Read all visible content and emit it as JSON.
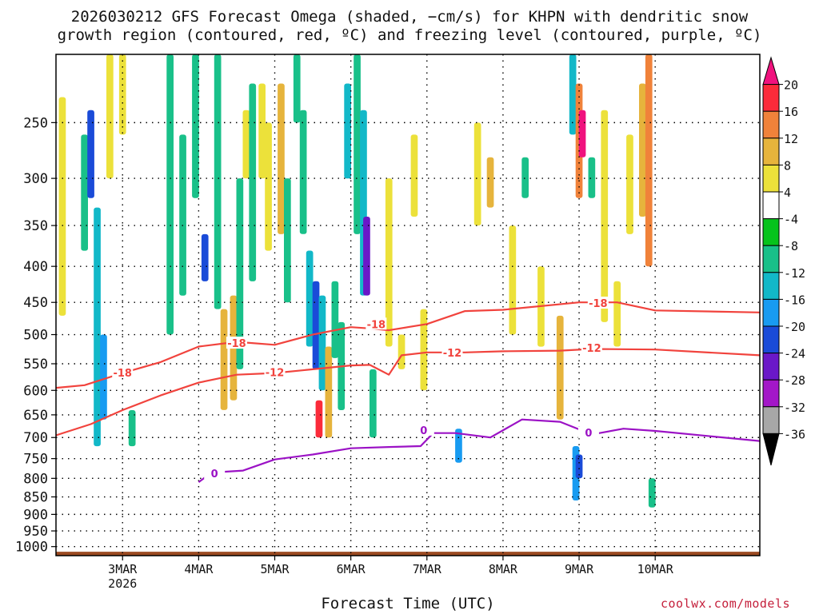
{
  "title": {
    "line1": "2026030212 GFS Forecast Omega (shaded, −cm/s) for KHPN with dendritic snow",
    "line2": "growth region (contoured, red, ºC) and freezing level (contoured, purple, ºC)"
  },
  "x_axis_title": "Forecast Time (UTC)",
  "credit": "coolwx.com/models",
  "chart_data": {
    "type": "heatmap",
    "x_label": "Forecast Time (UTC)",
    "x_range_hours": [
      -9,
      213
    ],
    "x_ticks": [
      {
        "hour": 12,
        "label": "3MAR",
        "sublabel": "2026"
      },
      {
        "hour": 36,
        "label": "4MAR",
        "sublabel": ""
      },
      {
        "hour": 60,
        "label": "5MAR",
        "sublabel": ""
      },
      {
        "hour": 84,
        "label": "6MAR",
        "sublabel": ""
      },
      {
        "hour": 108,
        "label": "7MAR",
        "sublabel": ""
      },
      {
        "hour": 132,
        "label": "8MAR",
        "sublabel": ""
      },
      {
        "hour": 156,
        "label": "9MAR",
        "sublabel": ""
      },
      {
        "hour": 180,
        "label": "10MAR",
        "sublabel": ""
      }
    ],
    "y_label": "Pressure (hPa)",
    "y_range_hpa": [
      1030,
      200
    ],
    "y_ticks": [
      250,
      300,
      350,
      400,
      450,
      500,
      550,
      600,
      650,
      700,
      750,
      800,
      850,
      900,
      950,
      1000
    ],
    "colorbar": {
      "labels": [
        "20",
        "16",
        "12",
        "8",
        "4",
        "-4",
        "-8",
        "-12",
        "-16",
        "-20",
        "-24",
        "-28",
        "-32",
        "-36"
      ],
      "colors": [
        "#f0127e",
        "#fb2b3a",
        "#f0823a",
        "#e6b43c",
        "#ece13a",
        "#ffffff",
        "#06c31c",
        "#19c089",
        "#12b8c8",
        "#189bf1",
        "#1a4bd8",
        "#6a18c8",
        "#a317c8",
        "#a7a7a7",
        "#000000"
      ]
    },
    "omega_cells": [
      {
        "t": -7,
        "p1": 230,
        "p2": 470,
        "v": 6
      },
      {
        "t": 0,
        "p1": 260,
        "p2": 380,
        "v": -10
      },
      {
        "t": 2,
        "p1": 240,
        "p2": 320,
        "v": -22
      },
      {
        "t": 4,
        "p1": 330,
        "p2": 720,
        "v": -14
      },
      {
        "t": 6,
        "p1": 500,
        "p2": 660,
        "v": -16
      },
      {
        "t": 8,
        "p1": 200,
        "p2": 300,
        "v": 6
      },
      {
        "t": 12,
        "p1": 200,
        "p2": 260,
        "v": 6
      },
      {
        "t": 15,
        "p1": 640,
        "p2": 720,
        "v": -8
      },
      {
        "t": 27,
        "p1": 200,
        "p2": 500,
        "v": -8
      },
      {
        "t": 31,
        "p1": 260,
        "p2": 440,
        "v": -10
      },
      {
        "t": 35,
        "p1": 200,
        "p2": 320,
        "v": -9
      },
      {
        "t": 38,
        "p1": 360,
        "p2": 420,
        "v": -20
      },
      {
        "t": 42,
        "p1": 200,
        "p2": 460,
        "v": -9
      },
      {
        "t": 44,
        "p1": 460,
        "p2": 640,
        "v": 8
      },
      {
        "t": 47,
        "p1": 440,
        "p2": 620,
        "v": 10
      },
      {
        "t": 49,
        "p1": 300,
        "p2": 560,
        "v": -10
      },
      {
        "t": 51,
        "p1": 240,
        "p2": 300,
        "v": 6
      },
      {
        "t": 53,
        "p1": 220,
        "p2": 420,
        "v": -9
      },
      {
        "t": 56,
        "p1": 220,
        "p2": 300,
        "v": 6
      },
      {
        "t": 58,
        "p1": 250,
        "p2": 380,
        "v": 6
      },
      {
        "t": 62,
        "p1": 220,
        "p2": 360,
        "v": 8
      },
      {
        "t": 64,
        "p1": 300,
        "p2": 450,
        "v": -8
      },
      {
        "t": 67,
        "p1": 200,
        "p2": 250,
        "v": -10
      },
      {
        "t": 69,
        "p1": 240,
        "p2": 360,
        "v": -9
      },
      {
        "t": 71,
        "p1": 380,
        "p2": 520,
        "v": -14
      },
      {
        "t": 73,
        "p1": 420,
        "p2": 560,
        "v": -22
      },
      {
        "t": 74,
        "p1": 620,
        "p2": 700,
        "v": 16
      },
      {
        "t": 75,
        "p1": 440,
        "p2": 600,
        "v": -12
      },
      {
        "t": 77,
        "p1": 520,
        "p2": 700,
        "v": 10
      },
      {
        "t": 79,
        "p1": 420,
        "p2": 540,
        "v": -10
      },
      {
        "t": 81,
        "p1": 480,
        "p2": 640,
        "v": -8
      },
      {
        "t": 83,
        "p1": 220,
        "p2": 300,
        "v": -12
      },
      {
        "t": 86,
        "p1": 200,
        "p2": 360,
        "v": -9
      },
      {
        "t": 88,
        "p1": 240,
        "p2": 440,
        "v": -14
      },
      {
        "t": 89,
        "p1": 340,
        "p2": 440,
        "v": -26
      },
      {
        "t": 91,
        "p1": 560,
        "p2": 700,
        "v": -8
      },
      {
        "t": 96,
        "p1": 300,
        "p2": 520,
        "v": 6
      },
      {
        "t": 100,
        "p1": 500,
        "p2": 560,
        "v": 6
      },
      {
        "t": 104,
        "p1": 260,
        "p2": 340,
        "v": 6
      },
      {
        "t": 107,
        "p1": 460,
        "p2": 600,
        "v": 6
      },
      {
        "t": 118,
        "p1": 680,
        "p2": 760,
        "v": -16
      },
      {
        "t": 124,
        "p1": 250,
        "p2": 350,
        "v": 6
      },
      {
        "t": 128,
        "p1": 280,
        "p2": 330,
        "v": 10
      },
      {
        "t": 135,
        "p1": 350,
        "p2": 500,
        "v": 6
      },
      {
        "t": 139,
        "p1": 280,
        "p2": 320,
        "v": -8
      },
      {
        "t": 144,
        "p1": 400,
        "p2": 520,
        "v": 6
      },
      {
        "t": 150,
        "p1": 470,
        "p2": 660,
        "v": 8
      },
      {
        "t": 154,
        "p1": 200,
        "p2": 260,
        "v": -12
      },
      {
        "t": 156,
        "p1": 220,
        "p2": 320,
        "v": 14
      },
      {
        "t": 157,
        "p1": 240,
        "p2": 280,
        "v": 20
      },
      {
        "t": 155,
        "p1": 720,
        "p2": 860,
        "v": -16
      },
      {
        "t": 156,
        "p1": 740,
        "p2": 800,
        "v": -22
      },
      {
        "t": 160,
        "p1": 280,
        "p2": 320,
        "v": -9
      },
      {
        "t": 164,
        "p1": 240,
        "p2": 480,
        "v": 6
      },
      {
        "t": 168,
        "p1": 420,
        "p2": 520,
        "v": 6
      },
      {
        "t": 172,
        "p1": 260,
        "p2": 360,
        "v": 6
      },
      {
        "t": 176,
        "p1": 220,
        "p2": 340,
        "v": 10
      },
      {
        "t": 178,
        "p1": 200,
        "p2": 400,
        "v": 12
      },
      {
        "t": 179,
        "p1": 800,
        "p2": 880,
        "v": -8
      }
    ],
    "dendritic_contours": [
      {
        "label": "-18",
        "points": [
          [
            -9,
            595
          ],
          [
            0,
            590
          ],
          [
            12,
            567
          ],
          [
            24,
            547
          ],
          [
            36,
            520
          ],
          [
            48,
            512
          ],
          [
            60,
            517
          ],
          [
            72,
            500
          ],
          [
            84,
            488
          ],
          [
            90,
            490
          ],
          [
            96,
            493
          ],
          [
            108,
            483
          ],
          [
            120,
            463
          ],
          [
            132,
            461
          ],
          [
            156,
            450
          ],
          [
            168,
            450
          ],
          [
            180,
            462
          ],
          [
            213,
            465
          ]
        ],
        "labels_at": [
          [
            12,
            566
          ],
          [
            48,
            514
          ],
          [
            92,
            483
          ],
          [
            162,
            451
          ]
        ]
      },
      {
        "label": "-12",
        "points": [
          [
            -9,
            695
          ],
          [
            2,
            670
          ],
          [
            12,
            640
          ],
          [
            24,
            610
          ],
          [
            36,
            585
          ],
          [
            48,
            570
          ],
          [
            60,
            567
          ],
          [
            72,
            560
          ],
          [
            84,
            553
          ],
          [
            90,
            552
          ],
          [
            96,
            570
          ],
          [
            100,
            535
          ],
          [
            108,
            530
          ],
          [
            120,
            530
          ],
          [
            132,
            528
          ],
          [
            150,
            527
          ],
          [
            160,
            524
          ],
          [
            180,
            525
          ],
          [
            213,
            535
          ]
        ],
        "labels_at": [
          [
            60,
            565
          ],
          [
            116,
            530
          ],
          [
            160,
            522
          ]
        ]
      }
    ],
    "freezing_contours": [
      {
        "label": "0",
        "points": [
          [
            36,
            810
          ],
          [
            40,
            785
          ],
          [
            50,
            780
          ],
          [
            60,
            752
          ],
          [
            72,
            740
          ],
          [
            84,
            725
          ],
          [
            96,
            722
          ],
          [
            106,
            720
          ],
          [
            110,
            690
          ],
          [
            117,
            690
          ],
          [
            128,
            700
          ],
          [
            138,
            660
          ],
          [
            150,
            665
          ],
          [
            160,
            693
          ],
          [
            170,
            680
          ],
          [
            180,
            685
          ],
          [
            213,
            708
          ]
        ],
        "labels_at": [
          [
            41,
            787
          ],
          [
            107,
            683
          ],
          [
            159,
            689
          ]
        ]
      }
    ]
  }
}
